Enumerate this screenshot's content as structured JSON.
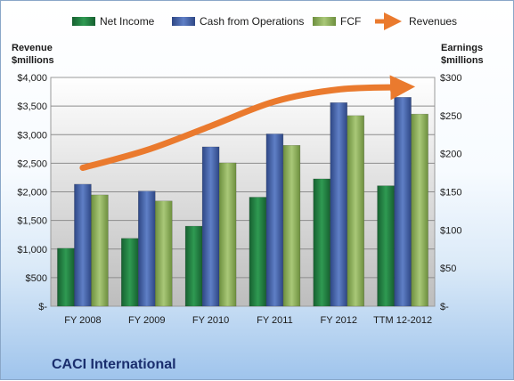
{
  "chart_data": {
    "type": "bar",
    "title": "CACI International",
    "categories": [
      "FY 2008",
      "FY 2009",
      "FY 2010",
      "FY 2011",
      "FY 2012",
      "TTM 12-2012"
    ],
    "series": [
      {
        "name": "Net Income",
        "axis": "right",
        "values": [
          76,
          89,
          105,
          143,
          167,
          158
        ],
        "color": "#1f7a3c"
      },
      {
        "name": "Cash from Operations",
        "axis": "right",
        "values": [
          160,
          151,
          209,
          226,
          267,
          274
        ],
        "color": "#3f5ea8"
      },
      {
        "name": "FCF",
        "axis": "right",
        "values": [
          146,
          138,
          188,
          211,
          250,
          252
        ],
        "color": "#8fb35a"
      }
    ],
    "line_series": {
      "name": "Revenues",
      "axis": "left",
      "values": [
        2420,
        2730,
        3150,
        3580,
        3790,
        3830
      ],
      "color": "#ea7a2e"
    },
    "ylabel_left": "Revenue $millions",
    "ylabel_right": "Earnings $millions",
    "ylim_left": [
      0,
      4000
    ],
    "ylim_right": [
      0,
      300
    ],
    "left_ticks": [
      "$-",
      "$500",
      "$1,000",
      "$1,500",
      "$2,000",
      "$2,500",
      "$3,000",
      "$3,500",
      "$4,000"
    ],
    "right_ticks": [
      "$-",
      "$50",
      "$100",
      "$150",
      "$200",
      "$250",
      "$300"
    ],
    "grid": true,
    "legend_position": "top"
  },
  "legend": {
    "net_income": "Net Income",
    "cfo": "Cash from Operations",
    "fcf": "FCF",
    "revenues": "Revenues"
  },
  "axis_titles": {
    "left_1": "Revenue",
    "left_2": "$millions",
    "right_1": "Earnings",
    "right_2": "$millions"
  },
  "company": "CACI International"
}
